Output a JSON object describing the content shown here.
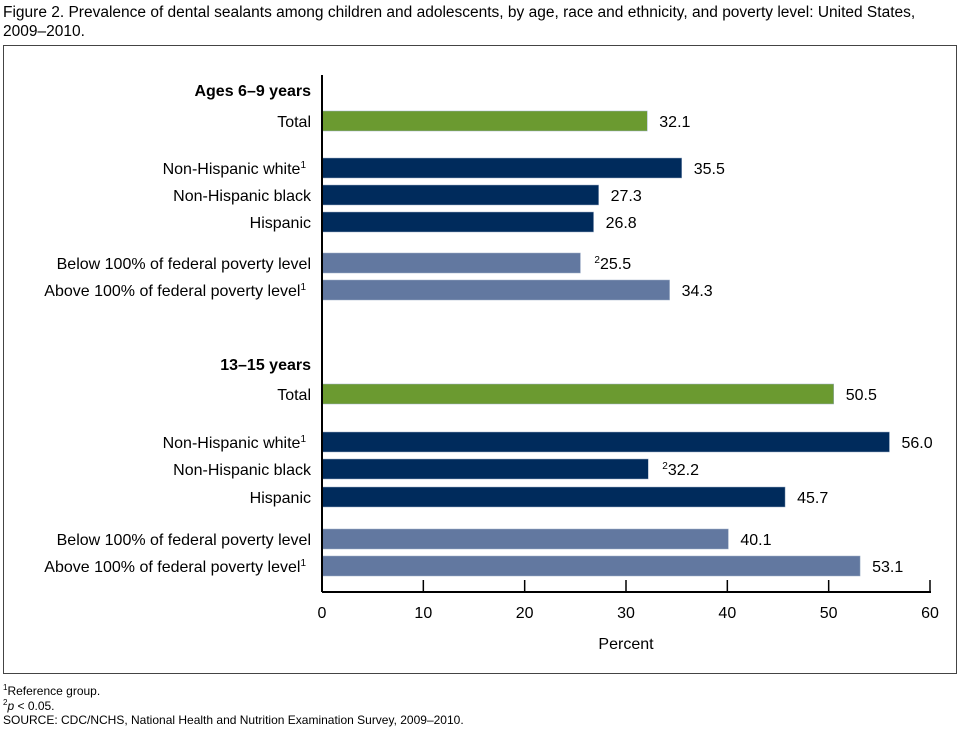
{
  "chart_data": {
    "type": "bar",
    "orientation": "horizontal",
    "title": "Figure 2. Prevalence of dental sealants among children and adolescents, by age, race and ethnicity, and poverty level: United States, 2009–2010.",
    "xlabel": "Percent",
    "xlim": [
      0,
      60
    ],
    "xticks": [
      0,
      10,
      20,
      30,
      40,
      50,
      60
    ],
    "colors": {
      "total": "#6b9a30",
      "race": "#002b5c",
      "poverty": "#6278a0"
    },
    "groups": [
      {
        "name": "Ages 6–9 years",
        "bars": [
          {
            "label": "Total",
            "sup": "",
            "value": 32.1,
            "value_label": "32.1",
            "value_sup": "",
            "kind": "total"
          },
          {
            "label": "Non-Hispanic white",
            "sup": "1",
            "value": 35.5,
            "value_label": "35.5",
            "value_sup": "",
            "kind": "race"
          },
          {
            "label": "Non-Hispanic black",
            "sup": "",
            "value": 27.3,
            "value_label": "27.3",
            "value_sup": "",
            "kind": "race"
          },
          {
            "label": "Hispanic",
            "sup": "",
            "value": 26.8,
            "value_label": "26.8",
            "value_sup": "",
            "kind": "race"
          },
          {
            "label": "Below 100% of federal poverty level",
            "sup": "",
            "value": 25.5,
            "value_label": "25.5",
            "value_sup": "2",
            "kind": "poverty"
          },
          {
            "label": "Above 100% of federal poverty level",
            "sup": "1",
            "value": 34.3,
            "value_label": "34.3",
            "value_sup": "",
            "kind": "poverty"
          }
        ]
      },
      {
        "name": "13–15 years",
        "bars": [
          {
            "label": "Total",
            "sup": "",
            "value": 50.5,
            "value_label": "50.5",
            "value_sup": "",
            "kind": "total"
          },
          {
            "label": "Non-Hispanic white",
            "sup": "1",
            "value": 56.0,
            "value_label": "56.0",
            "value_sup": "",
            "kind": "race"
          },
          {
            "label": "Non-Hispanic black",
            "sup": "",
            "value": 32.2,
            "value_label": "32.2",
            "value_sup": "2",
            "kind": "race"
          },
          {
            "label": "Hispanic",
            "sup": "",
            "value": 45.7,
            "value_label": "45.7",
            "value_sup": "",
            "kind": "race"
          },
          {
            "label": "Below 100% of federal poverty level",
            "sup": "",
            "value": 40.1,
            "value_label": "40.1",
            "value_sup": "",
            "kind": "poverty"
          },
          {
            "label": "Above 100% of federal poverty level",
            "sup": "1",
            "value": 53.1,
            "value_label": "53.1",
            "value_sup": "",
            "kind": "poverty"
          }
        ]
      }
    ]
  },
  "footnotes": {
    "note1_sup": "1",
    "note1": "Reference group.",
    "note2_sup": "2",
    "note2_p": "p",
    "note2": " < 0.05.",
    "source": "SOURCE: CDC/NCHS, National Health and Nutrition Examination Survey, 2009–2010."
  }
}
